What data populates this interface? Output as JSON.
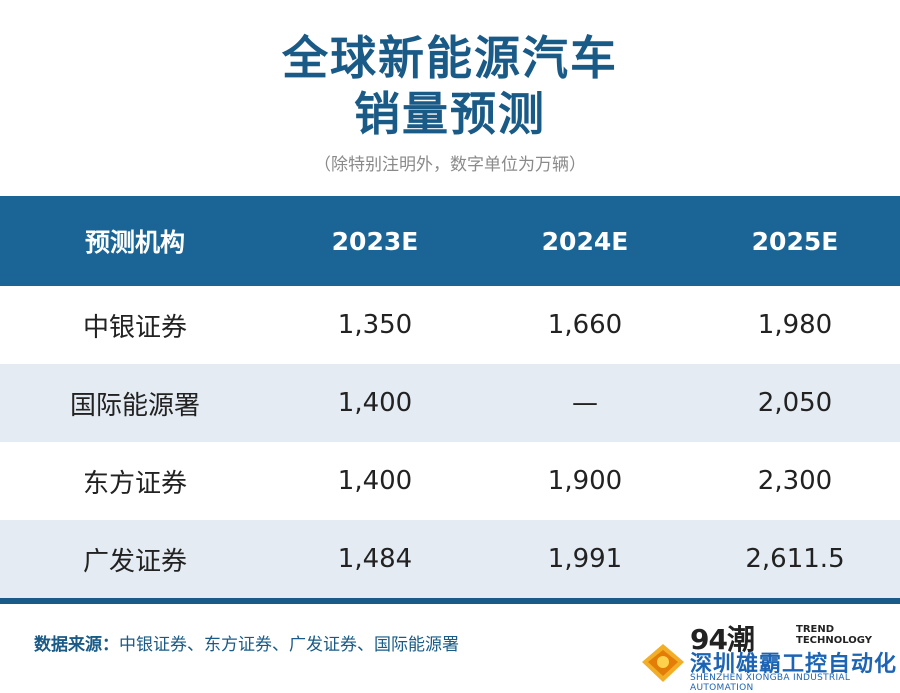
{
  "title": {
    "line1": "全球新能源汽车",
    "line2": "销量预测"
  },
  "subtitle": "（除特别注明外，数字单位为万辆）",
  "table": {
    "headers": [
      "预测机构",
      "2023E",
      "2024E",
      "2025E"
    ],
    "rows": [
      [
        "中银证券",
        "1,350",
        "1,660",
        "1,980"
      ],
      [
        "国际能源署",
        "1,400",
        "—",
        "2,050"
      ],
      [
        "东方证券",
        "1,400",
        "1,900",
        "2,300"
      ],
      [
        "广发证券",
        "1,484",
        "1,991",
        "2,611.5"
      ]
    ]
  },
  "source": {
    "label": "数据来源：",
    "text": "中银证券、东方证券、广发证券、国际能源署"
  },
  "logo": {
    "main": "94潮",
    "trend_line1": "TREND",
    "trend_line2": "TECHNOLOGY"
  },
  "watermark": {
    "name": "深圳雄霸工控自动化",
    "english": "SHENZHEN XIONGBA INDUSTRIAL AUTOMATION"
  },
  "colors": {
    "title": "#1a5a86",
    "header_bg": "#1a6596",
    "alt_row_bg": "#e4ebf2",
    "watermark": "#1c64b4"
  }
}
